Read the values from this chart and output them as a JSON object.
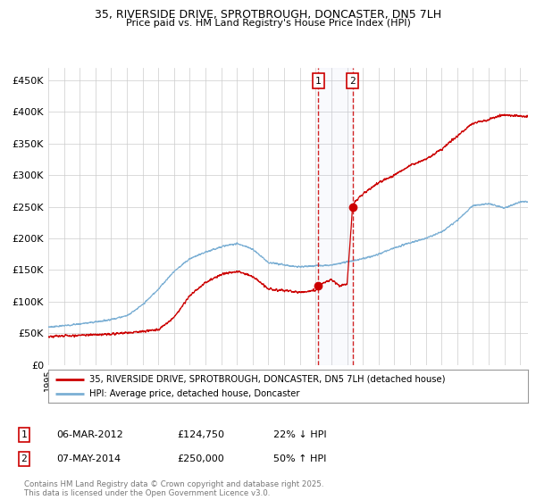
{
  "title_line1": "35, RIVERSIDE DRIVE, SPROTBROUGH, DONCASTER, DN5 7LH",
  "title_line2": "Price paid vs. HM Land Registry's House Price Index (HPI)",
  "legend_label1": "35, RIVERSIDE DRIVE, SPROTBROUGH, DONCASTER, DN5 7LH (detached house)",
  "legend_label2": "HPI: Average price, detached house, Doncaster",
  "sale1_date": "06-MAR-2012",
  "sale1_price": 124750,
  "sale1_price_str": "£124,750",
  "sale1_hpi": "22% ↓ HPI",
  "sale2_date": "07-MAY-2014",
  "sale2_price": 250000,
  "sale2_price_str": "£250,000",
  "sale2_hpi": "50% ↑ HPI",
  "footnote": "Contains HM Land Registry data © Crown copyright and database right 2025.\nThis data is licensed under the Open Government Licence v3.0.",
  "red_color": "#cc0000",
  "blue_color": "#7bafd4",
  "background_color": "#ffffff",
  "grid_color": "#cccccc",
  "ylim": [
    0,
    470000
  ],
  "yticks": [
    0,
    50000,
    100000,
    150000,
    200000,
    250000,
    300000,
    350000,
    400000,
    450000
  ],
  "xlim_left": 1995,
  "xlim_right": 2025.5,
  "sale1_year": 2012.17,
  "sale2_year": 2014.35,
  "hpi_key_years": [
    1995,
    1996,
    1997,
    1998,
    1999,
    2000,
    2001,
    2002,
    2003,
    2004,
    2005,
    2006,
    2007,
    2008,
    2009,
    2010,
    2011,
    2012,
    2013,
    2014,
    2015,
    2016,
    2017,
    2018,
    2019,
    2020,
    2021,
    2022,
    2023,
    2024,
    2025
  ],
  "hpi_key_vals": [
    60000,
    62000,
    65000,
    68000,
    72000,
    78000,
    95000,
    120000,
    148000,
    168000,
    178000,
    187000,
    192000,
    183000,
    162000,
    158000,
    155000,
    157000,
    158000,
    163000,
    168000,
    175000,
    185000,
    193000,
    200000,
    210000,
    228000,
    252000,
    255000,
    248000,
    258000
  ],
  "price_key_years": [
    1995,
    1996,
    1997,
    1998,
    1999,
    2000,
    2001,
    2002,
    2003,
    2004,
    2005,
    2006,
    2007,
    2008,
    2009,
    2010,
    2011,
    2012.0,
    2012.17,
    2012.5,
    2013.0,
    2013.5,
    2014.0,
    2014.35,
    2014.5,
    2015,
    2016,
    2017,
    2018,
    2019,
    2020,
    2021,
    2022,
    2023,
    2024,
    2025
  ],
  "price_key_vals": [
    45000,
    46000,
    47000,
    48000,
    49000,
    51000,
    53000,
    56000,
    75000,
    110000,
    130000,
    143000,
    148000,
    140000,
    120000,
    118000,
    115000,
    118000,
    124750,
    130000,
    135000,
    125000,
    128000,
    250000,
    258000,
    270000,
    288000,
    300000,
    315000,
    325000,
    340000,
    362000,
    382000,
    388000,
    395000,
    393000
  ]
}
